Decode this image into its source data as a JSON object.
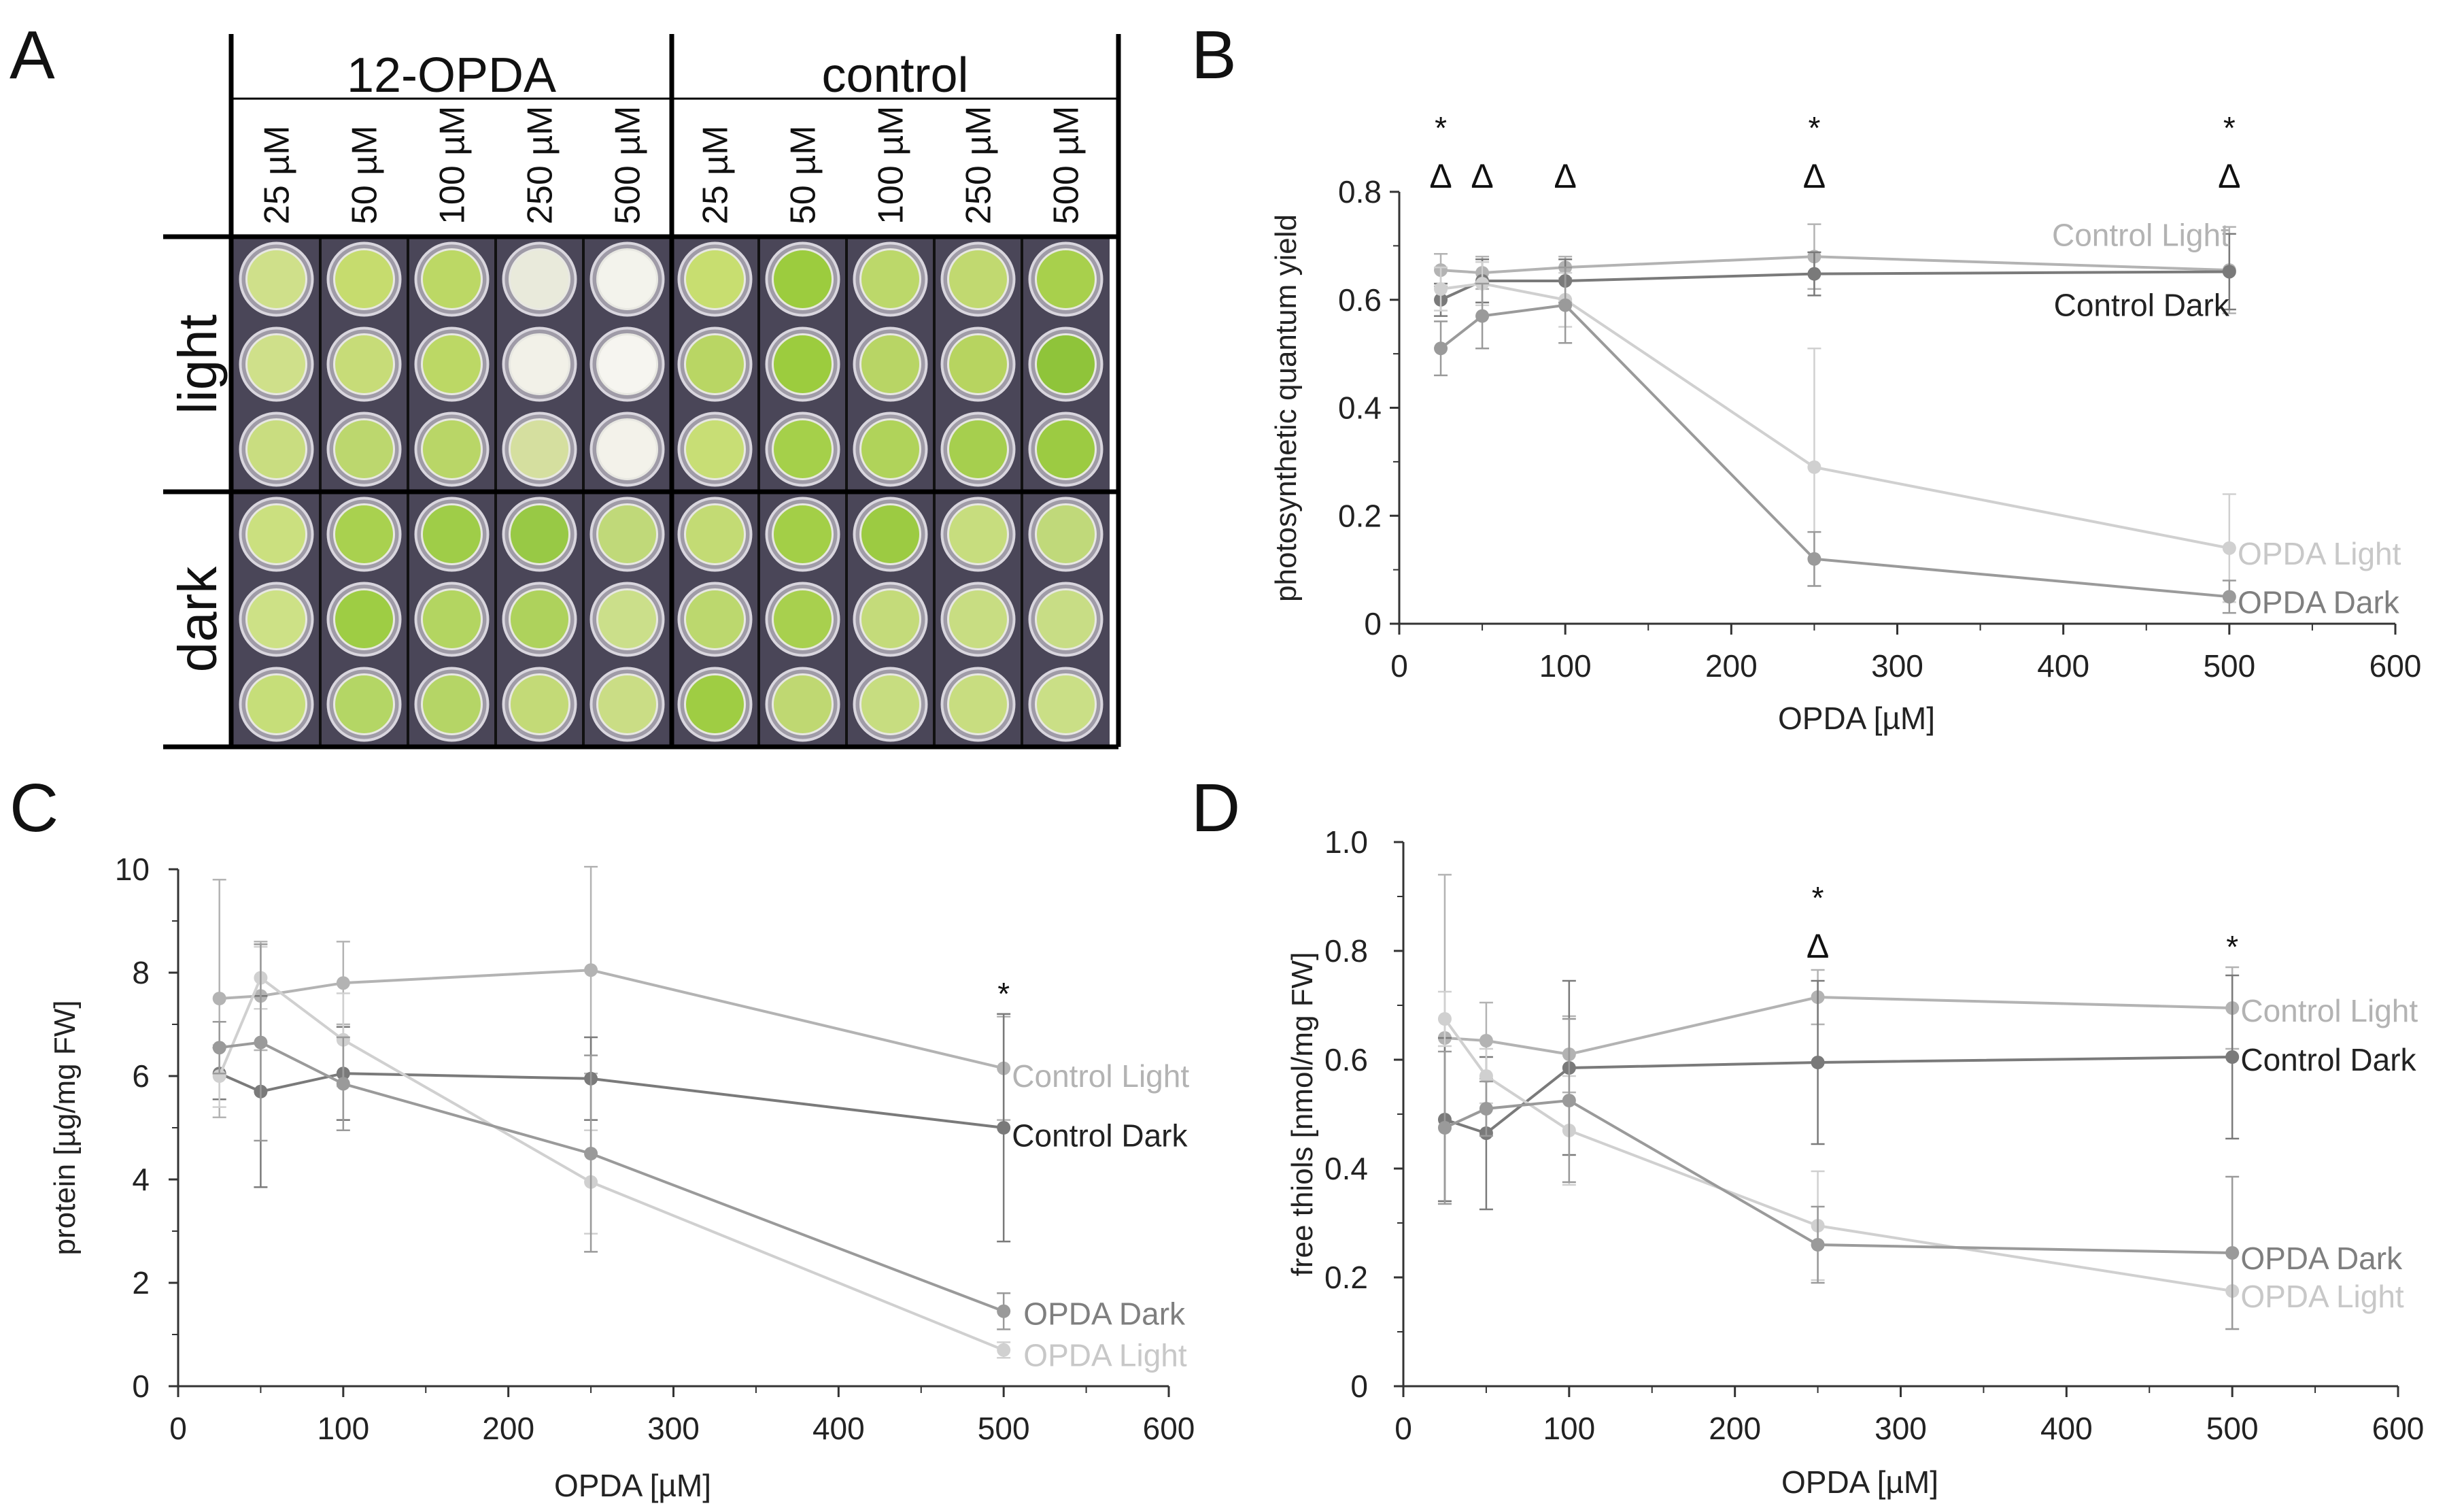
{
  "panels": {
    "A": {
      "letter": "A",
      "groups": [
        {
          "label": "12-OPDA",
          "concentrations": [
            "25 µM",
            "50 µM",
            "100 µM",
            "250 µM",
            "500 µM"
          ]
        },
        {
          "label": "control",
          "concentrations": [
            "25 µM",
            "50 µM",
            "100 µM",
            "250 µM",
            "500 µM"
          ]
        }
      ],
      "row_labels": [
        "light",
        "dark"
      ],
      "well_colors": [
        [
          "#cfe08a",
          "#c6dc6e",
          "#bcd865",
          "#e9eadb",
          "#f3f3ec",
          "#c8de70",
          "#9ccc3e",
          "#bcd86a",
          "#c1d970",
          "#a8d04c"
        ],
        [
          "#cfe08a",
          "#c7dc78",
          "#bcd865",
          "#f2f1e8",
          "#f6f5f0",
          "#b9d664",
          "#9ccc3e",
          "#b8d565",
          "#b7d460",
          "#8fc43a"
        ],
        [
          "#c9dd80",
          "#bcd76e",
          "#b9d667",
          "#d5df9f",
          "#f3f2ea",
          "#c8de75",
          "#a5d04a",
          "#b0d35a",
          "#a6cf4e",
          "#9ccb42"
        ],
        [
          "#cbe07f",
          "#a9d14f",
          "#9fcd48",
          "#98c945",
          "#c0d979",
          "#c3db74",
          "#a3cf47",
          "#9ccb42",
          "#c7dd7e",
          "#c0d97a"
        ],
        [
          "#cde186",
          "#9ecd44",
          "#b3d561",
          "#aed25c",
          "#cbdf8a",
          "#bcd86e",
          "#a8d04e",
          "#c4db7a",
          "#c8dd82",
          "#c8dd85"
        ],
        [
          "#c6de79",
          "#b4d665",
          "#b5d566",
          "#c3da77",
          "#cadd85",
          "#9fcd43",
          "#bfd872",
          "#c7dd80",
          "#c8dd80",
          "#cadf86"
        ]
      ]
    },
    "B": {
      "letter": "B",
      "annotations": [
        {
          "x": 25,
          "y": 0.8,
          "symbols": [
            "*",
            "Δ"
          ]
        },
        {
          "x": 50,
          "y": 0.8,
          "symbols": [
            "Δ"
          ]
        },
        {
          "x": 100,
          "y": 0.8,
          "symbols": [
            "Δ"
          ]
        },
        {
          "x": 250,
          "y": 0.8,
          "symbols": [
            "*",
            "Δ"
          ]
        },
        {
          "x": 500,
          "y": 0.8,
          "symbols": [
            "*",
            "Δ"
          ]
        }
      ]
    },
    "C": {
      "letter": "C",
      "annotations": [
        {
          "x": 500,
          "y": 7.3,
          "symbols": [
            "*"
          ]
        }
      ]
    },
    "D": {
      "letter": "D",
      "annotations": [
        {
          "x": 250,
          "y": 0.78,
          "symbols": [
            "*",
            "Δ"
          ]
        },
        {
          "x": 500,
          "y": 0.78,
          "symbols": [
            "*"
          ]
        }
      ]
    }
  },
  "chart_data": [
    {
      "panel": "B",
      "type": "line",
      "xlabel": "OPDA  [µM]",
      "ylabel": "photosynthetic quantum yield",
      "xlim": [
        0,
        600
      ],
      "ylim": [
        0,
        0.8
      ],
      "xticks": [
        0,
        100,
        200,
        300,
        400,
        500,
        600
      ],
      "yticks": [
        0,
        0.2,
        0.4,
        0.6,
        0.8
      ],
      "ytick_labels": [
        "0",
        "0.2",
        "0.4",
        "0.6",
        "0.8"
      ],
      "series": [
        {
          "name": "Control Light",
          "color": "#b3b3b3",
          "x": [
            25,
            50,
            100,
            250,
            500
          ],
          "y": [
            0.655,
            0.65,
            0.66,
            0.68,
            0.655
          ],
          "err": [
            0.03,
            0.03,
            0.02,
            0.06,
            0.08
          ]
        },
        {
          "name": "Control Dark",
          "color": "#7a7a7a",
          "x": [
            25,
            50,
            100,
            250,
            500
          ],
          "y": [
            0.6,
            0.635,
            0.635,
            0.648,
            0.652
          ],
          "err": [
            0.03,
            0.04,
            0.04,
            0.04,
            0.07
          ]
        },
        {
          "name": "OPDA Light",
          "color": "#d0d0d0",
          "x": [
            25,
            50,
            100,
            250,
            500
          ],
          "y": [
            0.62,
            0.63,
            0.6,
            0.29,
            0.14
          ],
          "err": [
            0.04,
            0.04,
            0.05,
            0.22,
            0.1
          ]
        },
        {
          "name": "OPDA Dark",
          "color": "#9a9a9a",
          "x": [
            25,
            50,
            100,
            250,
            500
          ],
          "y": [
            0.51,
            0.57,
            0.59,
            0.12,
            0.05
          ],
          "err": [
            0.05,
            0.06,
            0.07,
            0.05,
            0.03
          ]
        }
      ],
      "legend_labels": [
        {
          "name": "Control Light",
          "x": 500,
          "y": 0.72,
          "anchor": "end",
          "color": "#b3b3b3"
        },
        {
          "name": "Control Dark",
          "x": 500,
          "y": 0.59,
          "anchor": "end",
          "color": "#222222"
        },
        {
          "name": "OPDA Light",
          "x": 505,
          "y": 0.13,
          "anchor": "start",
          "color": "#c8c8c8"
        },
        {
          "name": "OPDA Dark",
          "x": 505,
          "y": 0.04,
          "anchor": "start",
          "color": "#7f7f7f"
        }
      ]
    },
    {
      "panel": "C",
      "type": "line",
      "xlabel": "OPDA  [µM]",
      "ylabel": "protein [µg/mg FW]",
      "xlim": [
        0,
        600
      ],
      "ylim": [
        0,
        10
      ],
      "xticks": [
        0,
        100,
        200,
        300,
        400,
        500,
        600
      ],
      "yticks": [
        0,
        2,
        4,
        6,
        8,
        10
      ],
      "ytick_labels": [
        "0",
        "2",
        "4",
        "6",
        "8",
        "10"
      ],
      "series": [
        {
          "name": "Control Light",
          "color": "#b3b3b3",
          "x": [
            25,
            50,
            100,
            250,
            500
          ],
          "y": [
            7.5,
            7.55,
            7.8,
            8.05,
            6.15
          ],
          "err": [
            2.3,
            1.05,
            0.8,
            2.0,
            1.0
          ]
        },
        {
          "name": "Control Dark",
          "color": "#7a7a7a",
          "x": [
            25,
            50,
            100,
            250,
            500
          ],
          "y": [
            6.05,
            5.7,
            6.05,
            5.95,
            5.0
          ],
          "err": [
            0.5,
            1.85,
            0.9,
            0.8,
            2.2
          ]
        },
        {
          "name": "OPDA Light",
          "color": "#d0d0d0",
          "x": [
            25,
            50,
            100,
            250,
            500
          ],
          "y": [
            6.0,
            7.9,
            6.7,
            3.95,
            0.7
          ],
          "err": [
            0.6,
            0.6,
            0.9,
            1.0,
            0.15
          ]
        },
        {
          "name": "OPDA Dark",
          "color": "#9a9a9a",
          "x": [
            25,
            50,
            100,
            250,
            500
          ],
          "y": [
            6.55,
            6.65,
            5.85,
            4.5,
            1.45
          ],
          "err": [
            0.5,
            1.9,
            0.9,
            1.9,
            0.35
          ]
        }
      ],
      "legend_labels": [
        {
          "name": "Control Light",
          "x": 505,
          "y": 6.0,
          "anchor": "start",
          "color": "#b3b3b3"
        },
        {
          "name": "Control Dark",
          "x": 505,
          "y": 4.85,
          "anchor": "start",
          "color": "#222222"
        },
        {
          "name": "OPDA Dark",
          "x": 512,
          "y": 1.4,
          "anchor": "start",
          "color": "#7f7f7f"
        },
        {
          "name": "OPDA Light",
          "x": 512,
          "y": 0.6,
          "anchor": "start",
          "color": "#c8c8c8"
        }
      ]
    },
    {
      "panel": "D",
      "type": "line",
      "xlabel": "OPDA  [µM]",
      "ylabel": "free thiols [nmol/mg FW]",
      "xlim": [
        0,
        600
      ],
      "ylim": [
        0,
        1.0
      ],
      "xticks": [
        0,
        100,
        200,
        300,
        400,
        500,
        600
      ],
      "yticks": [
        0,
        0.2,
        0.4,
        0.6,
        0.8,
        1.0
      ],
      "ytick_labels": [
        "0",
        "0.2",
        "0.4",
        "0.6",
        "0.8",
        "1.0"
      ],
      "series": [
        {
          "name": "Control Light",
          "color": "#b3b3b3",
          "x": [
            25,
            50,
            100,
            250,
            500
          ],
          "y": [
            0.64,
            0.635,
            0.61,
            0.715,
            0.695
          ],
          "err": [
            0.3,
            0.07,
            0.07,
            0.05,
            0.075
          ]
        },
        {
          "name": "Control Dark",
          "color": "#7a7a7a",
          "x": [
            25,
            50,
            100,
            250,
            500
          ],
          "y": [
            0.49,
            0.465,
            0.585,
            0.595,
            0.605
          ],
          "err": [
            0.15,
            0.14,
            0.16,
            0.15,
            0.15
          ]
        },
        {
          "name": "OPDA Light",
          "color": "#d0d0d0",
          "x": [
            25,
            50,
            100,
            250,
            500
          ],
          "y": [
            0.675,
            0.57,
            0.47,
            0.295,
            0.175
          ],
          "err": [
            0.05,
            0.05,
            0.1,
            0.1,
            0.07
          ]
        },
        {
          "name": "OPDA Dark",
          "color": "#9a9a9a",
          "x": [
            25,
            50,
            100,
            250,
            500
          ],
          "y": [
            0.475,
            0.51,
            0.525,
            0.26,
            0.245
          ],
          "err": [
            0.14,
            0.05,
            0.15,
            0.07,
            0.14
          ]
        }
      ],
      "legend_labels": [
        {
          "name": "Control Light",
          "x": 505,
          "y": 0.69,
          "anchor": "start",
          "color": "#b3b3b3"
        },
        {
          "name": "Control Dark",
          "x": 505,
          "y": 0.6,
          "anchor": "start",
          "color": "#222222"
        },
        {
          "name": "OPDA Dark",
          "x": 505,
          "y": 0.235,
          "anchor": "start",
          "color": "#7f7f7f"
        },
        {
          "name": "OPDA Light",
          "x": 505,
          "y": 0.165,
          "anchor": "start",
          "color": "#c8c8c8"
        }
      ]
    }
  ]
}
